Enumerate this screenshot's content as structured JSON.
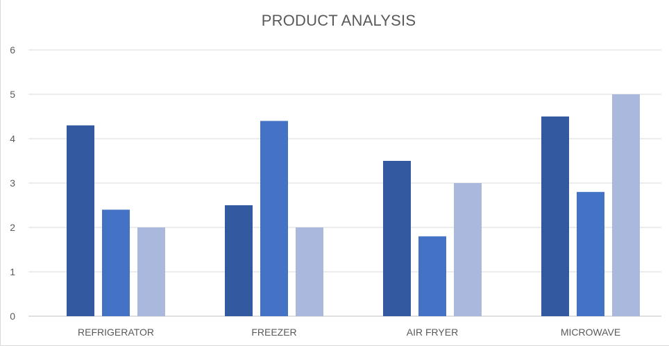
{
  "chart_data": {
    "type": "bar",
    "title": "PRODUCT ANALYSIS",
    "xlabel": "",
    "ylabel": "",
    "categories": [
      "REFRIGERATOR",
      "FREEZER",
      "AIR FRYER",
      "MICROWAVE"
    ],
    "series": [
      {
        "values": [
          4.3,
          2.5,
          3.5,
          4.5
        ],
        "color": "#335aa1"
      },
      {
        "values": [
          2.4,
          4.4,
          1.8,
          2.8
        ],
        "color": "#4472c4"
      },
      {
        "values": [
          2.0,
          2.0,
          3.0,
          5.0
        ],
        "color": "#a9b8dc"
      }
    ],
    "ylim": [
      0,
      6
    ],
    "yticks": [
      "0",
      "1",
      "2",
      "3",
      "4",
      "5",
      "6"
    ],
    "grid": true,
    "legend": "none"
  }
}
